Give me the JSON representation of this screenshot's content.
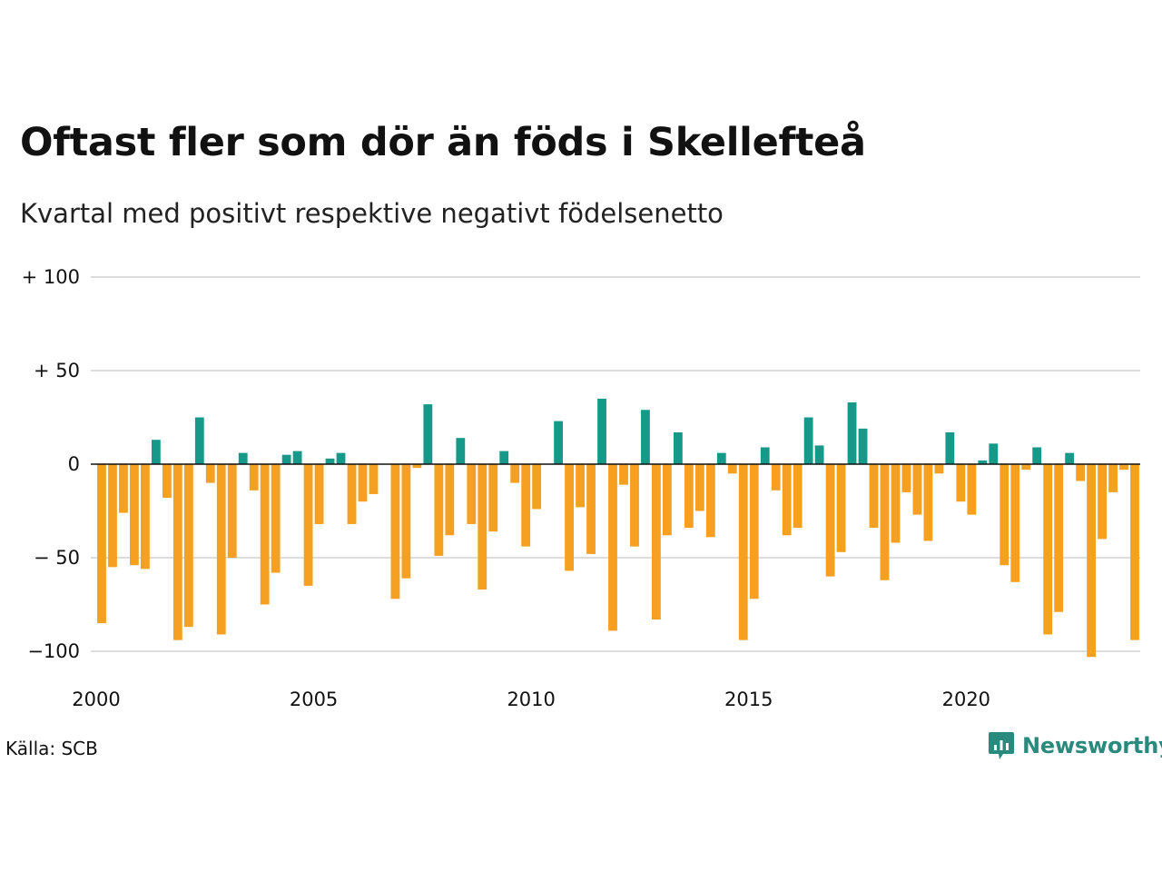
{
  "title": "Oftast fler som dör än föds i Skellefteå",
  "subtitle": "Kvartal med positivt respektive negativt födelsenetto",
  "source": "Källa: SCB",
  "brand": "Newsworthy",
  "colors": {
    "positive": "#17998a",
    "negative": "#f5a020",
    "brand": "#2b8a7e",
    "grid": "#dddddd"
  },
  "chart_data": {
    "type": "bar",
    "title": "Oftast fler som dör än föds i Skellefteå",
    "subtitle": "Kvartal med positivt respektive negativt födelsenetto",
    "xlabel": "",
    "ylabel": "",
    "ylim": [
      -105,
      100
    ],
    "xlim": [
      2000,
      2024
    ],
    "grid": true,
    "y_ticks": [
      {
        "value": 100,
        "label": "+ 100"
      },
      {
        "value": 50,
        "label": "+  50"
      },
      {
        "value": 0,
        "label": "0"
      },
      {
        "value": -50,
        "label": "− 50"
      },
      {
        "value": -100,
        "label": "−100"
      }
    ],
    "x_ticks": [
      {
        "value": 2000,
        "label": "2000"
      },
      {
        "value": 2005,
        "label": "2005"
      },
      {
        "value": 2010,
        "label": "2010"
      },
      {
        "value": 2015,
        "label": "2015"
      },
      {
        "value": 2020,
        "label": "2020"
      }
    ],
    "start_year": 2000,
    "values": [
      -85,
      -55,
      -26,
      -54,
      -56,
      13,
      -18,
      -94,
      -87,
      25,
      -10,
      -91,
      -50,
      6,
      -14,
      -75,
      -58,
      5,
      7,
      -65,
      -32,
      3,
      6,
      -32,
      -20,
      -16,
      0,
      -72,
      -61,
      -2,
      32,
      -49,
      -38,
      14,
      -32,
      -67,
      -36,
      7,
      -10,
      -44,
      -24,
      0,
      23,
      -57,
      -23,
      -48,
      35,
      -89,
      -11,
      -44,
      29,
      -83,
      -38,
      17,
      -34,
      -25,
      -39,
      6,
      -5,
      -94,
      -72,
      9,
      -14,
      -38,
      -34,
      25,
      10,
      -60,
      -47,
      33,
      19,
      -34,
      -62,
      -42,
      -15,
      -27,
      -41,
      -5,
      17,
      -20,
      -27,
      2,
      11,
      -54,
      -63,
      -3,
      9,
      -91,
      -79,
      6,
      -9,
      -103,
      -40,
      -15,
      -3,
      -94
    ]
  }
}
